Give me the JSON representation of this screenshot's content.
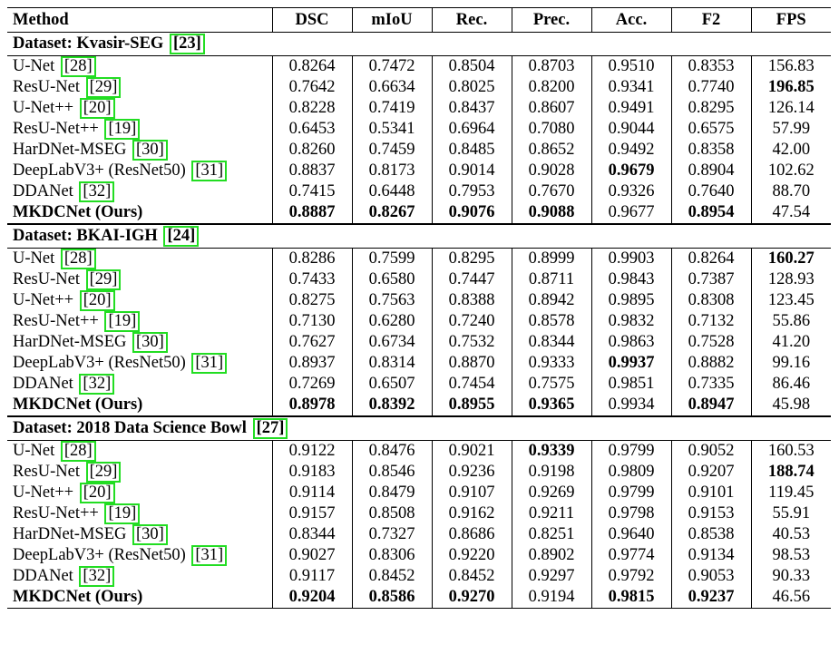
{
  "header": {
    "method": "Method",
    "metrics": [
      "DSC",
      "mIoU",
      "Rec.",
      "Prec.",
      "Acc.",
      "F2",
      "FPS"
    ]
  },
  "sections": [
    {
      "dataset_label": "Dataset: Kvasir-SEG",
      "dataset_ref": "[23]",
      "rows": [
        {
          "name": "U-Net",
          "ref": "[28]",
          "values": [
            "0.8264",
            "0.7472",
            "0.8504",
            "0.8703",
            "0.9510",
            "0.8353",
            "156.83"
          ],
          "bold": []
        },
        {
          "name": "ResU-Net",
          "ref": "[29]",
          "values": [
            "0.7642",
            "0.6634",
            "0.8025",
            "0.8200",
            "0.9341",
            "0.7740",
            "196.85"
          ],
          "bold": [
            6
          ]
        },
        {
          "name": "U-Net++",
          "ref": "[20]",
          "values": [
            "0.8228",
            "0.7419",
            "0.8437",
            "0.8607",
            "0.9491",
            "0.8295",
            "126.14"
          ],
          "bold": []
        },
        {
          "name": "ResU-Net++",
          "ref": "[19]",
          "values": [
            "0.6453",
            "0.5341",
            "0.6964",
            "0.7080",
            "0.9044",
            "0.6575",
            "57.99"
          ],
          "bold": []
        },
        {
          "name": "HarDNet-MSEG",
          "ref": "[30]",
          "values": [
            "0.8260",
            "0.7459",
            "0.8485",
            "0.8652",
            "0.9492",
            "0.8358",
            "42.00"
          ],
          "bold": []
        },
        {
          "name": "DeepLabV3+ (ResNet50)",
          "ref": "[31]",
          "values": [
            "0.8837",
            "0.8173",
            "0.9014",
            "0.9028",
            "0.9679",
            "0.8904",
            "102.62"
          ],
          "bold": [
            4
          ]
        },
        {
          "name": "DDANet",
          "ref": "[32]",
          "values": [
            "0.7415",
            "0.6448",
            "0.7953",
            "0.7670",
            "0.9326",
            "0.7640",
            "88.70"
          ],
          "bold": []
        },
        {
          "name": "MKDCNet (Ours)",
          "ref": "",
          "name_bold": true,
          "values": [
            "0.8887",
            "0.8267",
            "0.9076",
            "0.9088",
            "0.9677",
            "0.8954",
            "47.54"
          ],
          "bold": [
            0,
            1,
            2,
            3,
            5
          ]
        }
      ]
    },
    {
      "dataset_label": "Dataset: BKAI-IGH",
      "dataset_ref": "[24]",
      "rows": [
        {
          "name": "U-Net",
          "ref": "[28]",
          "values": [
            "0.8286",
            "0.7599",
            "0.8295",
            "0.8999",
            "0.9903",
            "0.8264",
            "160.27"
          ],
          "bold": [
            6
          ]
        },
        {
          "name": "ResU-Net",
          "ref": "[29]",
          "values": [
            "0.7433",
            "0.6580",
            "0.7447",
            "0.8711",
            "0.9843",
            "0.7387",
            "128.93"
          ],
          "bold": []
        },
        {
          "name": "U-Net++",
          "ref": "[20]",
          "values": [
            "0.8275",
            "0.7563",
            "0.8388",
            "0.8942",
            "0.9895",
            "0.8308",
            "123.45"
          ],
          "bold": []
        },
        {
          "name": "ResU-Net++",
          "ref": "[19]",
          "values": [
            "0.7130",
            "0.6280",
            "0.7240",
            "0.8578",
            "0.9832",
            "0.7132",
            "55.86"
          ],
          "bold": []
        },
        {
          "name": "HarDNet-MSEG",
          "ref": "[30]",
          "values": [
            "0.7627",
            "0.6734",
            "0.7532",
            "0.8344",
            "0.9863",
            "0.7528",
            "41.20"
          ],
          "bold": []
        },
        {
          "name": "DeepLabV3+ (ResNet50)",
          "ref": "[31]",
          "values": [
            "0.8937",
            "0.8314",
            "0.8870",
            "0.9333",
            "0.9937",
            "0.8882",
            "99.16"
          ],
          "bold": [
            4
          ]
        },
        {
          "name": "DDANet",
          "ref": "[32]",
          "values": [
            "0.7269",
            "0.6507",
            "0.7454",
            "0.7575",
            "0.9851",
            "0.7335",
            "86.46"
          ],
          "bold": []
        },
        {
          "name": "MKDCNet (Ours)",
          "ref": "",
          "name_bold": true,
          "values": [
            "0.8978",
            "0.8392",
            "0.8955",
            "0.9365",
            "0.9934",
            "0.8947",
            "45.98"
          ],
          "bold": [
            0,
            1,
            2,
            3,
            5
          ]
        }
      ]
    },
    {
      "dataset_label": "Dataset: 2018 Data Science Bowl",
      "dataset_ref": "[27]",
      "rows": [
        {
          "name": "U-Net",
          "ref": "[28]",
          "values": [
            "0.9122",
            "0.8476",
            "0.9021",
            "0.9339",
            "0.9799",
            "0.9052",
            "160.53"
          ],
          "bold": [
            3
          ]
        },
        {
          "name": "ResU-Net",
          "ref": "[29]",
          "values": [
            "0.9183",
            "0.8546",
            "0.9236",
            "0.9198",
            "0.9809",
            "0.9207",
            "188.74"
          ],
          "bold": [
            6
          ]
        },
        {
          "name": "U-Net++",
          "ref": "[20]",
          "values": [
            "0.9114",
            "0.8479",
            "0.9107",
            "0.9269",
            "0.9799",
            "0.9101",
            "119.45"
          ],
          "bold": []
        },
        {
          "name": "ResU-Net++",
          "ref": "[19]",
          "values": [
            "0.9157",
            "0.8508",
            "0.9162",
            "0.9211",
            "0.9798",
            "0.9153",
            "55.91"
          ],
          "bold": []
        },
        {
          "name": "HarDNet-MSEG",
          "ref": "[30]",
          "values": [
            "0.8344",
            "0.7327",
            "0.8686",
            "0.8251",
            "0.9640",
            "0.8538",
            "40.53"
          ],
          "bold": []
        },
        {
          "name": "DeepLabV3+ (ResNet50)",
          "ref": "[31]",
          "values": [
            "0.9027",
            "0.8306",
            "0.9220",
            "0.8902",
            "0.9774",
            "0.9134",
            "98.53"
          ],
          "bold": []
        },
        {
          "name": "DDANet",
          "ref": "[32]",
          "values": [
            "0.9117",
            "0.8452",
            "0.8452",
            "0.9297",
            "0.9792",
            "0.9053",
            "90.33"
          ],
          "bold": []
        },
        {
          "name": "MKDCNet (Ours)",
          "ref": "",
          "name_bold": true,
          "values": [
            "0.9204",
            "0.8586",
            "0.9270",
            "0.9194",
            "0.9815",
            "0.9237",
            "46.56"
          ],
          "bold": [
            0,
            1,
            2,
            4,
            5
          ]
        }
      ]
    }
  ]
}
